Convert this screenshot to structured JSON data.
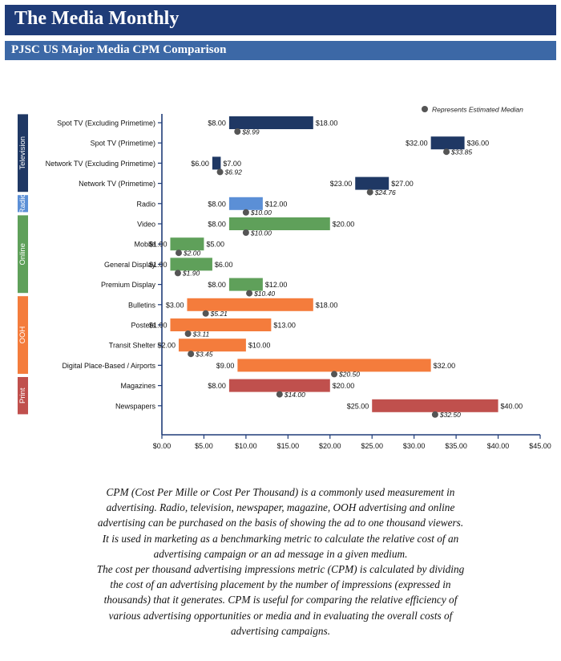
{
  "header": {
    "title": "The Media Monthly",
    "subtitle": "PJSC US Major Media CPM Comparison"
  },
  "legend": {
    "label": "Represents Estimated Median"
  },
  "description": [
    "CPM (Cost Per Mille or Cost Per Thousand) is a commonly used measurement in advertising. Radio, television, newspaper, magazine, OOH advertising and online advertising can be purchased on the basis of showing the ad to one thousand viewers. It is used in marketing as a benchmarking metric to calculate the relative cost of an advertising campaign or an ad message in a given medium.",
    "The cost per thousand advertising impressions metric (CPM) is calculated by dividing the cost of an advertising placement by the number of impressions (expressed in thousands) that it generates. CPM is useful for comparing the relative efficiency of various advertising opportunities or media and in evaluating the overall costs of advertising campaigns."
  ],
  "colors": {
    "banner": "#1f3c78",
    "subbanner": "#3c68a6",
    "Television": "#1f3864",
    "Radio": "#5b8fd6",
    "Online": "#5fa05a",
    "OOH": "#f47c3c",
    "Print": "#c0504d",
    "median": "#555555",
    "axis": "#1f3c78"
  },
  "chart_data": {
    "type": "bar",
    "subtype": "floating-range",
    "xlim": [
      0,
      45
    ],
    "xticks": [
      "$0.00",
      "$5.00",
      "$10.00",
      "$15.00",
      "$20.00",
      "$25.00",
      "$30.00",
      "$35.00",
      "$40.00",
      "$45.00"
    ],
    "groups": [
      {
        "name": "Television",
        "rows": 4
      },
      {
        "name": "Radio",
        "rows": 1
      },
      {
        "name": "Online",
        "rows": 4
      },
      {
        "name": "OOH",
        "rows": 4
      },
      {
        "name": "Print",
        "rows": 2
      }
    ],
    "series": [
      {
        "label": "Spot TV (Excluding Primetime)",
        "group": "Television",
        "low": 8,
        "high": 18,
        "median": 8.99,
        "low_label": "$8.00",
        "high_label": "$18.00",
        "median_label": "$8.99"
      },
      {
        "label": "Spot TV (Primetime)",
        "group": "Television",
        "low": 32,
        "high": 36,
        "median": 33.85,
        "low_label": "$32.00",
        "high_label": "$36.00",
        "median_label": "$33.85"
      },
      {
        "label": "Network TV (Excluding Primetime)",
        "group": "Television",
        "low": 6,
        "high": 7,
        "median": 6.92,
        "low_label": "$6.00",
        "high_label": "$7.00",
        "median_label": "$6.92"
      },
      {
        "label": "Network TV (Primetime)",
        "group": "Television",
        "low": 23,
        "high": 27,
        "median": 24.76,
        "low_label": "$23.00",
        "high_label": "$27.00",
        "median_label": "$24.76"
      },
      {
        "label": "Radio",
        "group": "Radio",
        "low": 8,
        "high": 12,
        "median": 10,
        "low_label": "$8.00",
        "high_label": "$12.00",
        "median_label": "$10.00"
      },
      {
        "label": "Video",
        "group": "Online",
        "low": 8,
        "high": 20,
        "median": 10,
        "low_label": "$8.00",
        "high_label": "$20.00",
        "median_label": "$10.00"
      },
      {
        "label": "Mobile",
        "group": "Online",
        "low": 1,
        "high": 5,
        "median": 2,
        "low_label": "$1.00",
        "high_label": "$5.00",
        "median_label": "$2.00"
      },
      {
        "label": "General Display",
        "group": "Online",
        "low": 1,
        "high": 6,
        "median": 1.9,
        "low_label": "$1.00",
        "high_label": "$6.00",
        "median_label": "$1.90"
      },
      {
        "label": "Premium Display",
        "group": "Online",
        "low": 8,
        "high": 12,
        "median": 10.4,
        "low_label": "$8.00",
        "high_label": "$12.00",
        "median_label": "$10.40"
      },
      {
        "label": "Bulletins",
        "group": "OOH",
        "low": 3,
        "high": 18,
        "median": 5.21,
        "low_label": "$3.00",
        "high_label": "$18.00",
        "median_label": "$5.21"
      },
      {
        "label": "Posters",
        "group": "OOH",
        "low": 1,
        "high": 13,
        "median": 3.11,
        "low_label": "$1.00",
        "high_label": "$13.00",
        "median_label": "$3.11"
      },
      {
        "label": "Transit Shelter",
        "group": "OOH",
        "low": 2,
        "high": 10,
        "median": 3.45,
        "low_label": "$2.00",
        "high_label": "$10.00",
        "median_label": "$3.45"
      },
      {
        "label": "Digital Place-Based / Airports",
        "group": "OOH",
        "low": 9,
        "high": 32,
        "median": 20.5,
        "low_label": "$9.00",
        "high_label": "$32.00",
        "median_label": "$20.50"
      },
      {
        "label": "Magazines",
        "group": "Print",
        "low": 8,
        "high": 20,
        "median": 14,
        "low_label": "$8.00",
        "high_label": "$20.00",
        "median_label": "$14.00"
      },
      {
        "label": "Newspapers",
        "group": "Print",
        "low": 25,
        "high": 40,
        "median": 32.5,
        "low_label": "$25.00",
        "high_label": "$40.00",
        "median_label": "$32.50"
      }
    ]
  }
}
